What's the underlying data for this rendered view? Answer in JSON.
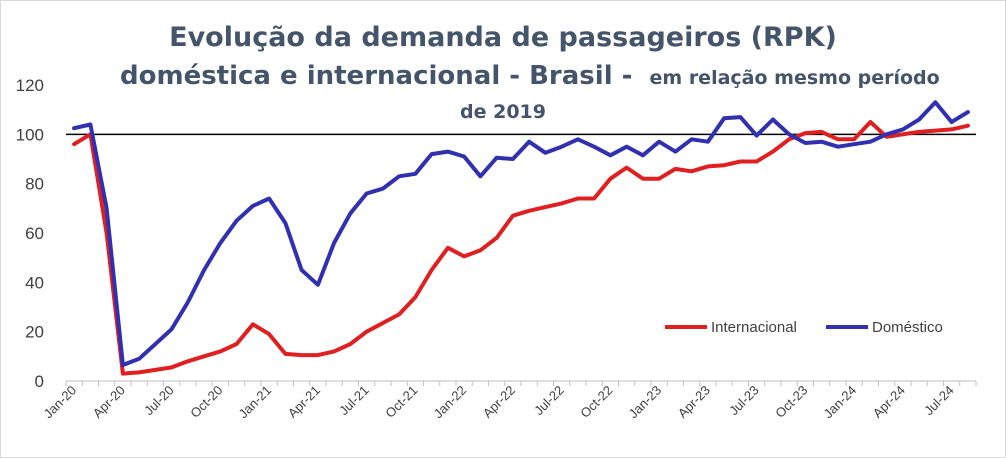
{
  "chart_data": {
    "type": "line",
    "title_lines": [
      "Evolução da demanda de passageiros (RPK)",
      "doméstica e internacional - Brasil -",
      "em relação mesmo período",
      "de 2019"
    ],
    "x_tick_labels": [
      "Jan-20",
      "Apr-20",
      "Jul-20",
      "Oct-20",
      "Jan-21",
      "Apr-21",
      "Jul-21",
      "Oct-21",
      "Jan-22",
      "Apr-22",
      "Jul-22",
      "Oct-22",
      "Jan-23",
      "Apr-23",
      "Jul-23",
      "Oct-23",
      "Jan-24",
      "Apr-24",
      "Jul-24"
    ],
    "y_ticks": [
      0,
      20,
      40,
      60,
      80,
      100,
      120
    ],
    "ylim": [
      0,
      120
    ],
    "reference_line": 100,
    "x_start": "Jan-20",
    "n_months": 56,
    "legend_position": "lower-right",
    "series": [
      {
        "name": "Internacional",
        "color": "#e02020",
        "values": [
          96,
          100,
          60,
          3,
          3.5,
          4.5,
          5.5,
          8,
          10,
          12,
          15,
          23,
          19,
          11,
          10.5,
          10.5,
          12,
          15,
          20,
          23.5,
          27,
          34,
          45,
          54,
          50.5,
          53,
          58,
          67,
          69,
          70.5,
          72,
          74,
          74,
          82,
          86.5,
          82,
          82,
          86,
          85,
          87,
          87.5,
          89,
          89,
          93,
          98,
          100.5,
          101,
          98,
          98,
          105,
          99,
          100,
          101,
          101.5,
          102,
          103.5
        ]
      },
      {
        "name": "Doméstico",
        "color": "#3030b0",
        "values": [
          102.5,
          104,
          70,
          6.5,
          9,
          15,
          21,
          32,
          45,
          56,
          65,
          71,
          74,
          64,
          45,
          39,
          56,
          68,
          76,
          78,
          83,
          84,
          92,
          93,
          91,
          83,
          90.5,
          90,
          97,
          92.5,
          95,
          98,
          95,
          91.5,
          95,
          91.5,
          97,
          93,
          98,
          97,
          106.5,
          107,
          99.5,
          106,
          100,
          96.5,
          97,
          95,
          96,
          97,
          100,
          102,
          106,
          113,
          105,
          109
        ]
      }
    ]
  }
}
